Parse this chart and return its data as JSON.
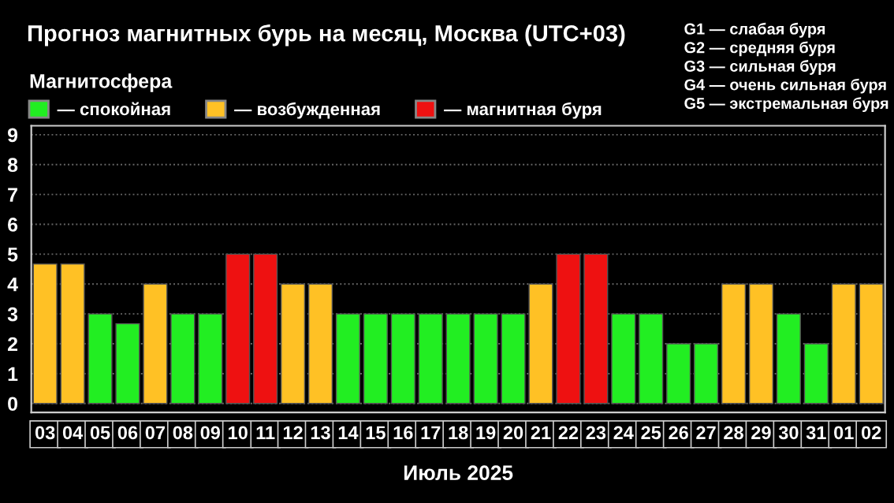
{
  "chart_data": {
    "type": "bar",
    "title": "Прогноз магнитных бурь на месяц, Москва (UTC+03)",
    "xlabel": "Июль 2025",
    "legend_title": "Магнитосфера",
    "categories": [
      "03",
      "04",
      "05",
      "06",
      "07",
      "08",
      "09",
      "10",
      "11",
      "12",
      "13",
      "14",
      "15",
      "16",
      "17",
      "18",
      "19",
      "20",
      "21",
      "22",
      "23",
      "24",
      "25",
      "26",
      "27",
      "28",
      "29",
      "30",
      "31",
      "01",
      "02"
    ],
    "series": [
      {
        "name": "— спокойная",
        "color": "#22ee22",
        "values": [
          null,
          null,
          3,
          2.67,
          null,
          3,
          3,
          null,
          null,
          null,
          null,
          3,
          3,
          3,
          3,
          3,
          3,
          3,
          null,
          null,
          null,
          3,
          3,
          2,
          2,
          null,
          null,
          3,
          2,
          null,
          null
        ]
      },
      {
        "name": "— возбужденная",
        "color": "#ffc125",
        "values": [
          4.67,
          4.67,
          null,
          null,
          4,
          null,
          null,
          null,
          null,
          4,
          4,
          null,
          null,
          null,
          null,
          null,
          null,
          null,
          4,
          null,
          null,
          null,
          null,
          null,
          null,
          4,
          4,
          null,
          null,
          4,
          4
        ]
      },
      {
        "name": "— магнитная буря",
        "color": "#ee1111",
        "values": [
          null,
          null,
          null,
          null,
          null,
          null,
          null,
          5,
          5,
          null,
          null,
          null,
          null,
          null,
          null,
          null,
          null,
          null,
          null,
          5,
          5,
          null,
          null,
          null,
          null,
          null,
          null,
          null,
          null,
          null,
          null
        ]
      }
    ],
    "ylim": [
      -0.3,
      9.3
    ],
    "yticks": [
      0,
      1,
      2,
      3,
      4,
      5,
      6,
      7,
      8,
      9
    ],
    "grid": "y",
    "legend": "top left",
    "annotations": [
      "G1 — слабая буря",
      "G2 — средняя буря",
      "G3 — сильная буря",
      "G4 — очень сильная буря",
      "G5 — экстремальная буря"
    ]
  }
}
